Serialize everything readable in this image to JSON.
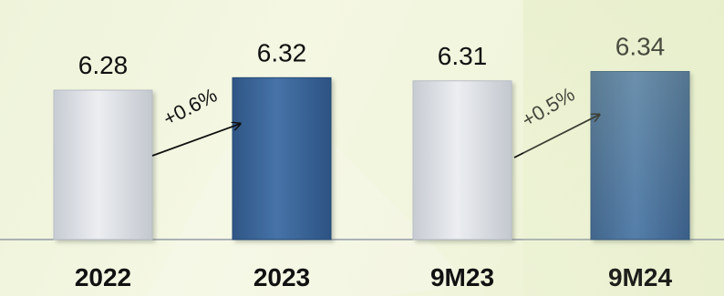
{
  "chart_data": {
    "type": "bar",
    "categories": [
      "2022",
      "2023",
      "9M23",
      "9M24"
    ],
    "values": [
      6.28,
      6.32,
      6.31,
      6.34
    ],
    "ylim": [
      5.8,
      6.4
    ],
    "grid": false,
    "legend": "none",
    "colors": [
      "#d9dce1",
      "#3e6798",
      "#d9dce1",
      "#3e6798"
    ],
    "annotations": [
      {
        "text": "+0.6%",
        "from": "2022",
        "to": "2023"
      },
      {
        "text": "+0.5%",
        "from": "9M23",
        "to": "9M24"
      }
    ]
  }
}
